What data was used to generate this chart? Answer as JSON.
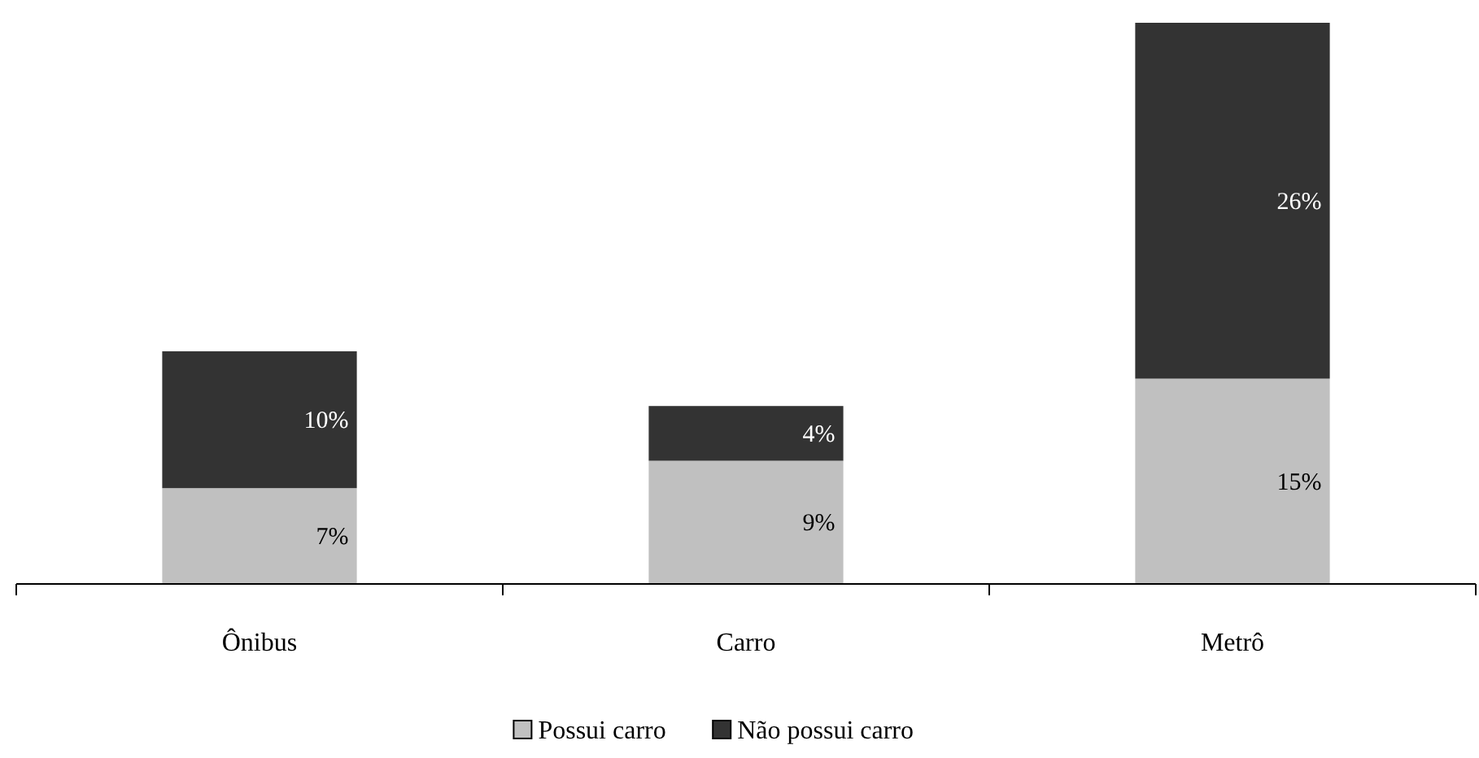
{
  "chart_data": {
    "type": "bar",
    "stacked": true,
    "categories": [
      "Ônibus",
      "Carro",
      "Metrô"
    ],
    "series": [
      {
        "name": "Possui carro",
        "color": "#c0c0c0",
        "values": [
          7,
          9,
          15
        ],
        "value_labels": [
          "7%",
          "9%",
          "15%"
        ]
      },
      {
        "name": "Não possui carro",
        "color": "#333333",
        "values": [
          10,
          4,
          26
        ],
        "value_labels": [
          "10%",
          "4%",
          "26%"
        ]
      }
    ],
    "legend": "bottom"
  }
}
